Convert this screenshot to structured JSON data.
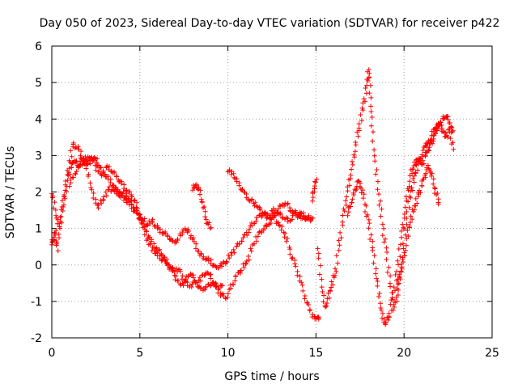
{
  "chart_data": {
    "type": "scatter",
    "title": "Day 050 of 2023, Sidereal Day-to-day VTEC variation (SDTVAR) for receiver p422",
    "xlabel": "GPS time / hours",
    "ylabel": "SDTVAR / TECUs",
    "xlim": [
      0,
      25
    ],
    "ylim": [
      -2,
      6
    ],
    "xticks": [
      0,
      5,
      10,
      15,
      20,
      25
    ],
    "yticks": [
      -2,
      -1,
      0,
      1,
      2,
      3,
      4,
      5,
      6
    ],
    "grid": true,
    "marker": "plus",
    "series": [
      {
        "name": "SDTVAR",
        "color": "#ff0000",
        "tracks": [
          {
            "x": [
              0.0,
              0.1,
              0.2,
              0.3,
              0.5,
              0.7,
              0.9,
              1.1,
              1.3,
              1.5,
              1.7,
              1.9,
              2.1,
              2.3,
              2.5,
              2.7,
              3.0,
              3.3,
              3.6,
              3.9,
              4.2,
              4.5,
              4.8,
              5.1,
              5.4,
              5.7,
              6.0,
              6.3,
              6.6,
              6.9,
              7.2,
              7.5,
              7.8,
              8.1,
              8.4,
              8.7,
              9.0,
              9.3,
              9.6,
              9.9,
              10.2,
              10.5,
              10.8,
              11.1,
              11.4,
              11.7,
              12.0,
              12.3,
              12.6,
              12.9,
              13.2,
              13.5,
              13.8,
              14.1,
              14.4,
              14.7,
              15.0,
              15.2
            ],
            "y": [
              0.6,
              0.7,
              0.9,
              0.4,
              1.2,
              1.8,
              2.4,
              2.7,
              2.9,
              2.7,
              2.9,
              2.8,
              2.8,
              2.9,
              2.9,
              2.7,
              2.5,
              2.3,
              2.1,
              2.0,
              1.9,
              1.7,
              1.5,
              1.2,
              0.9,
              0.6,
              0.4,
              0.3,
              0.0,
              -0.2,
              -0.1,
              -0.4,
              -0.6,
              -0.5,
              -0.4,
              -0.2,
              -0.3,
              -0.6,
              -0.8,
              -0.9,
              -0.6,
              -0.3,
              -0.1,
              0.1,
              0.5,
              0.8,
              1.0,
              1.1,
              1.3,
              1.1,
              0.9,
              0.4,
              0.0,
              -0.4,
              -0.9,
              -1.3,
              -1.5,
              -1.4
            ]
          },
          {
            "x": [
              0.0,
              0.2,
              0.4,
              0.6,
              0.8,
              1.0,
              1.2,
              1.5,
              1.8,
              2.1,
              2.4,
              2.7,
              3.0,
              3.3,
              3.6,
              3.9,
              4.2,
              4.5,
              4.8,
              5.1,
              5.4,
              5.7,
              6.0,
              6.3,
              6.6,
              6.9,
              7.2,
              7.5,
              7.8,
              8.1,
              8.4,
              8.7,
              9.0,
              9.3,
              9.6,
              9.9,
              10.2,
              10.5,
              10.8,
              11.1,
              11.4,
              11.7,
              12.0,
              12.3,
              12.6,
              12.9,
              13.2,
              13.5,
              13.8,
              14.1,
              14.4,
              14.7
            ],
            "y": [
              2.0,
              1.5,
              1.0,
              1.6,
              2.2,
              2.8,
              3.3,
              3.2,
              2.9,
              2.4,
              1.8,
              1.6,
              1.9,
              2.1,
              2.0,
              1.9,
              1.8,
              1.6,
              1.4,
              1.3,
              1.1,
              1.2,
              1.0,
              0.9,
              0.8,
              0.6,
              0.7,
              1.0,
              0.9,
              0.6,
              0.3,
              0.2,
              0.1,
              -0.1,
              0.0,
              0.1,
              0.3,
              0.5,
              0.7,
              0.9,
              1.1,
              1.3,
              1.4,
              1.3,
              1.5,
              1.4,
              1.3,
              1.2,
              1.4,
              1.3,
              1.3,
              1.2
            ]
          },
          {
            "x": [
              1.0,
              1.3,
              1.6,
              1.9,
              2.2,
              2.5,
              2.8,
              3.1,
              3.4,
              3.7,
              4.0,
              4.3,
              4.6,
              4.9,
              5.2,
              5.5,
              5.8,
              6.1,
              6.4,
              6.7,
              7.0,
              7.3,
              7.6,
              7.9,
              8.2,
              8.5,
              8.8,
              9.1,
              9.4,
              9.7
            ],
            "y": [
              2.2,
              2.5,
              2.7,
              2.9,
              3.0,
              2.7,
              2.4,
              2.7,
              2.6,
              2.4,
              2.2,
              2.0,
              1.9,
              1.5,
              1.0,
              0.6,
              0.4,
              0.2,
              0.1,
              0.0,
              -0.3,
              -0.6,
              -0.4,
              -0.2,
              -0.5,
              -0.7,
              -0.6,
              -0.5,
              -0.6,
              -0.6
            ]
          },
          {
            "x": [
              8.0,
              8.2,
              8.4,
              8.6,
              8.8,
              9.0
            ],
            "y": [
              2.1,
              2.2,
              2.0,
              1.6,
              1.2,
              1.0
            ]
          },
          {
            "x": [
              10.0,
              10.3,
              10.6,
              10.9,
              11.2,
              11.5,
              11.8,
              12.1,
              12.4,
              12.7,
              13.0,
              13.3,
              13.6,
              13.9,
              14.2,
              14.5,
              14.8
            ],
            "y": [
              2.6,
              2.5,
              2.2,
              2.0,
              1.8,
              1.7,
              1.5,
              1.4,
              1.3,
              1.4,
              1.6,
              1.7,
              1.5,
              1.4,
              1.4,
              1.3,
              1.3
            ]
          },
          {
            "x": [
              14.8,
              14.9,
              15.0
            ],
            "y": [
              1.8,
              2.1,
              2.3
            ]
          },
          {
            "x": [
              15.1,
              15.3,
              15.5,
              15.7,
              15.9,
              16.1,
              16.3,
              16.5,
              16.7,
              16.9,
              17.1,
              17.3,
              17.5,
              17.7,
              17.9,
              18.0,
              18.1,
              18.2,
              18.4,
              18.6,
              18.8,
              19.0,
              19.2,
              19.4,
              19.6,
              19.8,
              20.0,
              20.2,
              20.4,
              20.6,
              20.8,
              21.0,
              21.2,
              21.4,
              21.6,
              21.8,
              22.0,
              22.2,
              22.4,
              22.6,
              22.8
            ],
            "y": [
              0.5,
              -0.4,
              -1.2,
              -0.9,
              -0.5,
              -0.2,
              0.5,
              1.2,
              1.8,
              2.3,
              2.8,
              3.4,
              3.9,
              4.4,
              4.9,
              5.4,
              4.6,
              3.6,
              2.6,
              1.8,
              1.0,
              0.3,
              -0.5,
              -1.2,
              -0.9,
              -0.3,
              0.6,
              1.5,
              2.0,
              2.4,
              2.8,
              3.0,
              3.3,
              3.3,
              3.6,
              3.8,
              3.8,
              4.0,
              4.1,
              3.9,
              3.6
            ]
          },
          {
            "x": [
              16.8,
              17.0,
              17.2,
              17.4,
              17.6,
              17.8,
              18.0,
              18.2,
              18.4,
              18.6,
              18.8,
              19.0,
              19.2,
              19.4,
              19.6,
              19.8,
              20.0,
              20.2,
              20.4,
              20.6,
              20.8,
              21.0,
              21.2,
              21.4,
              21.6,
              21.8,
              22.0,
              22.2,
              22.4,
              22.6,
              22.8
            ],
            "y": [
              1.4,
              1.7,
              2.0,
              2.3,
              2.1,
              1.6,
              1.1,
              0.5,
              -0.2,
              -0.9,
              -1.5,
              -1.6,
              -1.3,
              -0.8,
              -0.2,
              0.6,
              1.3,
              2.0,
              2.5,
              2.8,
              2.9,
              2.7,
              3.0,
              3.2,
              3.4,
              3.6,
              3.9,
              3.7,
              3.5,
              3.7,
              3.2
            ]
          },
          {
            "x": [
              19.6,
              19.8,
              20.0,
              20.2,
              20.4,
              20.6,
              20.8,
              21.0,
              21.2,
              21.4,
              21.6,
              21.8,
              22.0
            ],
            "y": [
              -0.6,
              -0.2,
              0.2,
              0.8,
              1.3,
              1.6,
              1.9,
              2.2,
              2.5,
              2.7,
              2.4,
              2.0,
              1.7
            ]
          }
        ]
      }
    ]
  }
}
